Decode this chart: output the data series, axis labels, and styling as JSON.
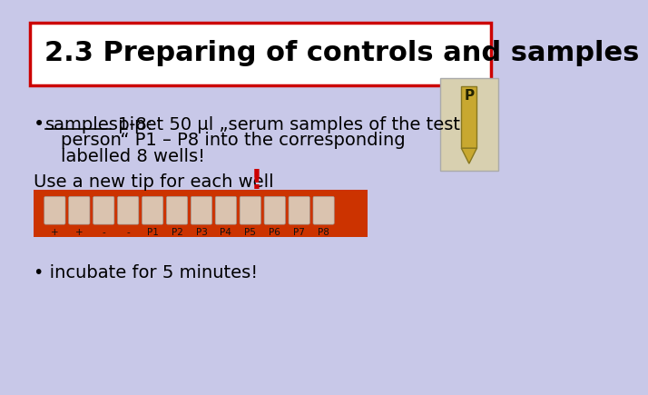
{
  "background_color": "#c8c8e8",
  "title": "2.3 Preparing of controls and samples",
  "title_box_color": "#ffffff",
  "title_box_edgecolor": "#cc0000",
  "title_fontsize": 22,
  "title_fontweight": "bold",
  "bullet1_label": "samples1-8:",
  "bullet1_text1": " pipet 50 µl „serum samples of the test",
  "bullet1_text2": "person“ P1 – P8 into the corresponding",
  "bullet1_text3": "labelled 8 wells!",
  "use_text": "Use a new tip for each well ",
  "exclamation": "!",
  "exclamation_color": "#cc0000",
  "bullet2_text": "incubate for 5 minutes!",
  "body_fontsize": 14,
  "body_color": "#000000",
  "image_strip_color": "#cc3300",
  "well_labels": [
    "+",
    "+",
    "-",
    "-",
    "P1",
    "P2",
    "P3",
    "P4",
    "P5",
    "P6",
    "P7",
    "P8"
  ],
  "tip_image_bg": "#d8d0b0",
  "tip_body_color": "#c8a830",
  "tip_edge_color": "#887820"
}
